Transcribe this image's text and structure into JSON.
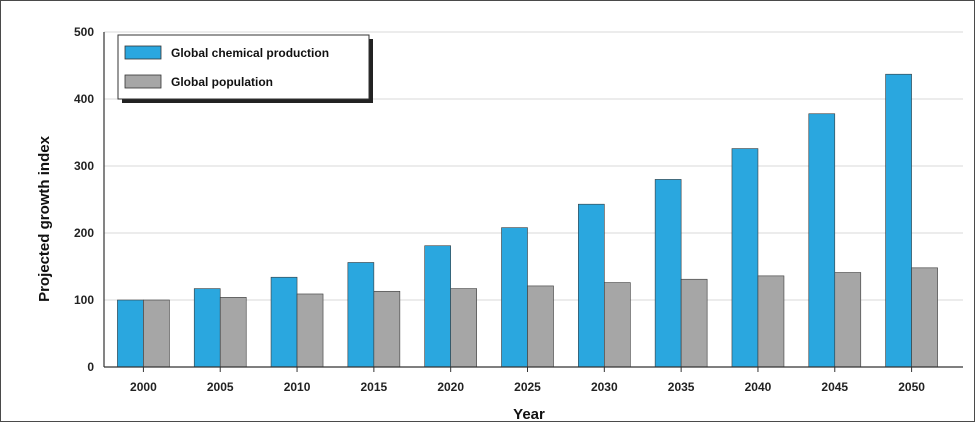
{
  "chart_data": {
    "type": "bar",
    "title": "",
    "xlabel": "Year",
    "ylabel": "Projected growth index",
    "ylim": [
      0,
      500
    ],
    "yticks": [
      0,
      100,
      200,
      300,
      400,
      500
    ],
    "grid": true,
    "legend_position": "top-left",
    "categories": [
      "2000",
      "2005",
      "2010",
      "2015",
      "2020",
      "2025",
      "2030",
      "2035",
      "2040",
      "2045",
      "2050"
    ],
    "series": [
      {
        "name": "Global chemical production",
        "color": "#2aa7df",
        "values": [
          100,
          117,
          134,
          156,
          181,
          208,
          243,
          280,
          326,
          378,
          437
        ]
      },
      {
        "name": "Global population",
        "color": "#a6a6a6",
        "values": [
          100,
          104,
          109,
          113,
          117,
          121,
          126,
          131,
          136,
          141,
          148
        ]
      }
    ]
  }
}
